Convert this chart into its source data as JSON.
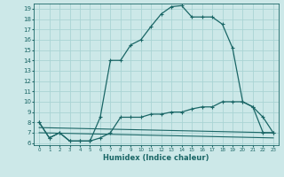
{
  "xlabel": "Humidex (Indice chaleur)",
  "ylabel": "",
  "xlim": [
    -0.5,
    23.5
  ],
  "ylim": [
    5.8,
    19.5
  ],
  "yticks": [
    6,
    7,
    8,
    9,
    10,
    11,
    12,
    13,
    14,
    15,
    16,
    17,
    18,
    19
  ],
  "xticks": [
    0,
    1,
    2,
    3,
    4,
    5,
    6,
    7,
    8,
    9,
    10,
    11,
    12,
    13,
    14,
    15,
    16,
    17,
    18,
    19,
    20,
    21,
    22,
    23
  ],
  "bg_color": "#cce8e8",
  "grid_color": "#aad4d4",
  "line_color": "#1a6666",
  "line1_x": [
    0,
    1,
    2,
    3,
    4,
    5,
    5,
    6,
    7,
    8,
    9,
    10,
    11,
    12,
    13,
    14,
    15,
    16,
    17,
    18,
    19,
    20,
    21,
    22,
    23
  ],
  "line1_y": [
    8,
    6.5,
    7,
    6.2,
    6.2,
    6.2,
    6.2,
    8.5,
    14,
    14,
    15.5,
    16,
    17.3,
    18.5,
    19.2,
    19.3,
    18.2,
    18.2,
    18.2,
    17.5,
    15.2,
    10,
    9.5,
    8.5,
    7
  ],
  "line2_x": [
    0,
    1,
    2,
    3,
    4,
    5,
    6,
    7,
    8,
    9,
    10,
    11,
    12,
    13,
    14,
    15,
    16,
    17,
    18,
    19,
    20,
    21,
    22,
    23
  ],
  "line2_y": [
    8,
    6.5,
    7,
    6.2,
    6.2,
    6.2,
    6.5,
    7,
    8.5,
    8.5,
    8.5,
    8.8,
    8.8,
    9,
    9,
    9.3,
    9.5,
    9.5,
    10,
    10,
    10,
    9.5,
    7,
    7
  ],
  "line3_x": [
    0,
    23
  ],
  "line3_y": [
    7.5,
    7.0
  ],
  "line4_x": [
    0,
    23
  ],
  "line4_y": [
    7.0,
    6.5
  ]
}
